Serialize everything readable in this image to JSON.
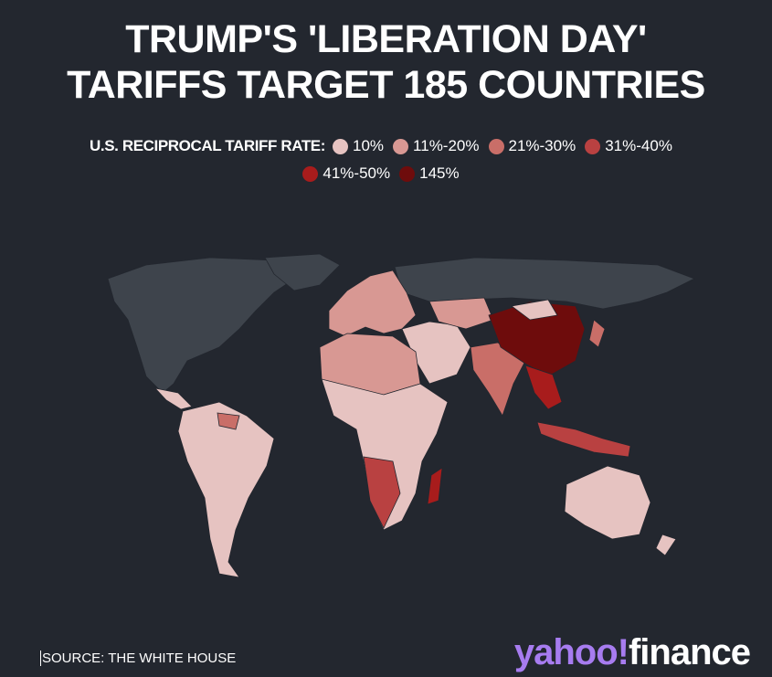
{
  "header": {
    "title_lines": [
      "TRUMP'S 'LIBERATION DAY'",
      "TARIFFS TARGET 185 COUNTRIES"
    ]
  },
  "legend": {
    "label": "U.S. RECIPROCAL TARIFF RATE:",
    "items": [
      {
        "label": "10%",
        "color": "#e6c3c1"
      },
      {
        "label": "11%-20%",
        "color": "#d89893"
      },
      {
        "label": "21%-30%",
        "color": "#c96e68"
      },
      {
        "label": "31%-40%",
        "color": "#b94141"
      },
      {
        "label": "41%-50%",
        "color": "#a81c1c"
      },
      {
        "label": "145%",
        "color": "#6e0c0c"
      }
    ]
  },
  "footer": {
    "source": "SOURCE: THE WHITE HOUSE",
    "logo_brand": "yahoo!",
    "logo_product": "finance"
  }
}
